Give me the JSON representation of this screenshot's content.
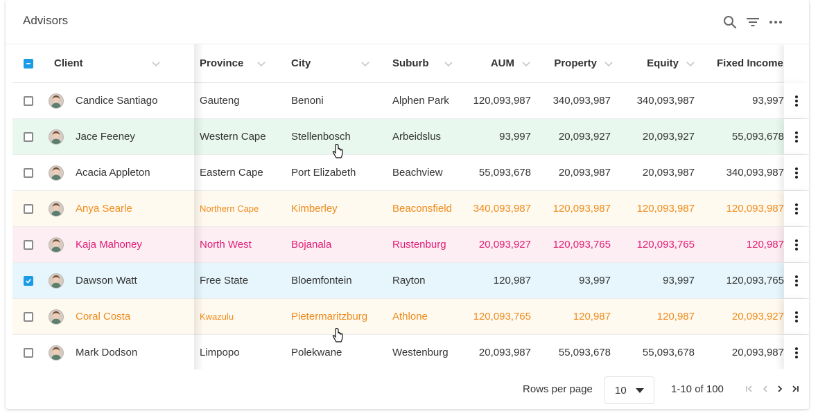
{
  "header": {
    "title": "Advisors"
  },
  "icons": {
    "search": "search-icon",
    "filter": "filter-icon",
    "more": "more-horizontal-icon"
  },
  "columns": [
    "Client",
    "Province",
    "City",
    "Suburb",
    "AUM",
    "Property",
    "Equity",
    "Fixed Income"
  ],
  "colors": {
    "green": "#e8f8ef",
    "yellow": "#fffaef",
    "pink": "#fdeef3",
    "blue": "#e6f6fc",
    "orange_text": "#ef8a1c",
    "pink_text": "#e11b74",
    "check_blue": "#1a9be6"
  },
  "rows": [
    {
      "client": "Candice Santiago",
      "province": "Gauteng",
      "city": "Benoni",
      "suburb": "Alphen Park",
      "aum": "120,093,987",
      "property": "340,093,987",
      "equity": "340,093,987",
      "fixed": "93,997",
      "checked": false,
      "tone": "plain"
    },
    {
      "client": "Jace Feeney",
      "province": "Western Cape",
      "city": "Stellenbosch",
      "suburb": "Arbeidslus",
      "aum": "93,997",
      "property": "20,093,927",
      "equity": "20,093,927",
      "fixed": "55,093,678",
      "checked": false,
      "tone": "green"
    },
    {
      "client": "Acacia Appleton",
      "province": "Eastern Cape",
      "city": "Port Elizabeth",
      "suburb": "Beachview",
      "aum": "55,093,678",
      "property": "20,093,987",
      "equity": "20,093,987",
      "fixed": "340,093,987",
      "checked": false,
      "tone": "plain"
    },
    {
      "client": "Anya Searle",
      "province": "Northern Cape",
      "city": "Kimberley",
      "suburb": "Beaconsfield",
      "aum": "340,093,987",
      "property": "120,093,987",
      "equity": "120,093,987",
      "fixed": "120,093,987",
      "checked": false,
      "tone": "orange"
    },
    {
      "client": "Kaja Mahoney",
      "province": "North West",
      "city": "Bojanala",
      "suburb": "Rustenburg",
      "aum": "20,093,927",
      "property": "120,093,765",
      "equity": "120,093,765",
      "fixed": "120,987",
      "checked": false,
      "tone": "pink"
    },
    {
      "client": "Dawson Watt",
      "province": "Free State",
      "city": "Bloemfontein",
      "suburb": "Rayton",
      "aum": "120,987",
      "property": "93,997",
      "equity": "93,997",
      "fixed": "120,093,765",
      "checked": true,
      "tone": "blue"
    },
    {
      "client": "Coral Costa",
      "province": "Kwazulu",
      "city": "Pietermaritzburg",
      "suburb": "Athlone",
      "aum": "120,093,765",
      "property": "120,987",
      "equity": "120,987",
      "fixed": "20,093,927",
      "checked": false,
      "tone": "orange2"
    },
    {
      "client": "Mark Dodson",
      "province": "Limpopo",
      "city": "Polekwane",
      "suburb": "Westenburg",
      "aum": "20,093,987",
      "property": "55,093,678",
      "equity": "55,093,678",
      "fixed": "20,093,987",
      "checked": false,
      "tone": "plain"
    }
  ],
  "footer": {
    "rows_per_page_label": "Rows per page",
    "rows_per_page_value": "10",
    "range_text": "1-10 of 100"
  }
}
